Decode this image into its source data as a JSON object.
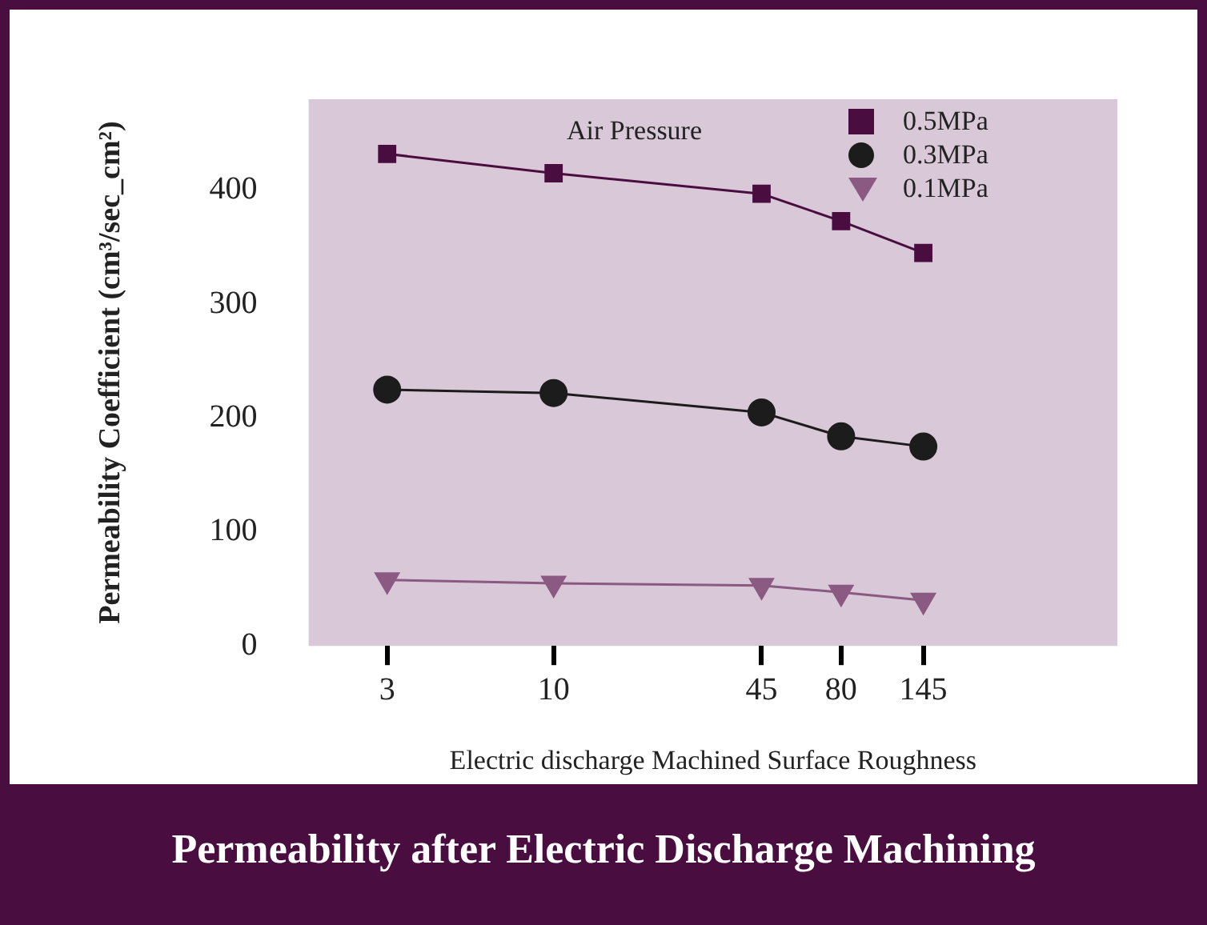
{
  "chart_data": {
    "type": "line",
    "title": "Permeability after Electric Discharge Machining",
    "xlabel": "Electric discharge Machined Surface Roughness",
    "ylabel": "Permeability Coefficient (cm³/sec_cm²)",
    "legend_title": "Air Pressure",
    "legend": "top right",
    "grid": false,
    "log": "x",
    "x": [
      3,
      10,
      45,
      80,
      145
    ],
    "xlim": [
      1.7,
      590
    ],
    "xticks": [
      3,
      10,
      45,
      80,
      145
    ],
    "ylim": [
      0,
      480
    ],
    "yticks": [
      0,
      100,
      200,
      300,
      400
    ],
    "series": [
      {
        "name": "0.5MPa",
        "color": "#4a0d40",
        "marker": "square",
        "values": [
          432,
          415,
          397,
          373,
          345
        ]
      },
      {
        "name": "0.3MPa",
        "color": "#1c1c1c",
        "marker": "circle",
        "values": [
          225,
          222,
          205,
          184,
          175
        ]
      },
      {
        "name": "0.1MPa",
        "color": "#8a5a82",
        "marker": "triangle",
        "values": [
          58,
          55,
          53,
          47,
          40
        ]
      }
    ]
  }
}
